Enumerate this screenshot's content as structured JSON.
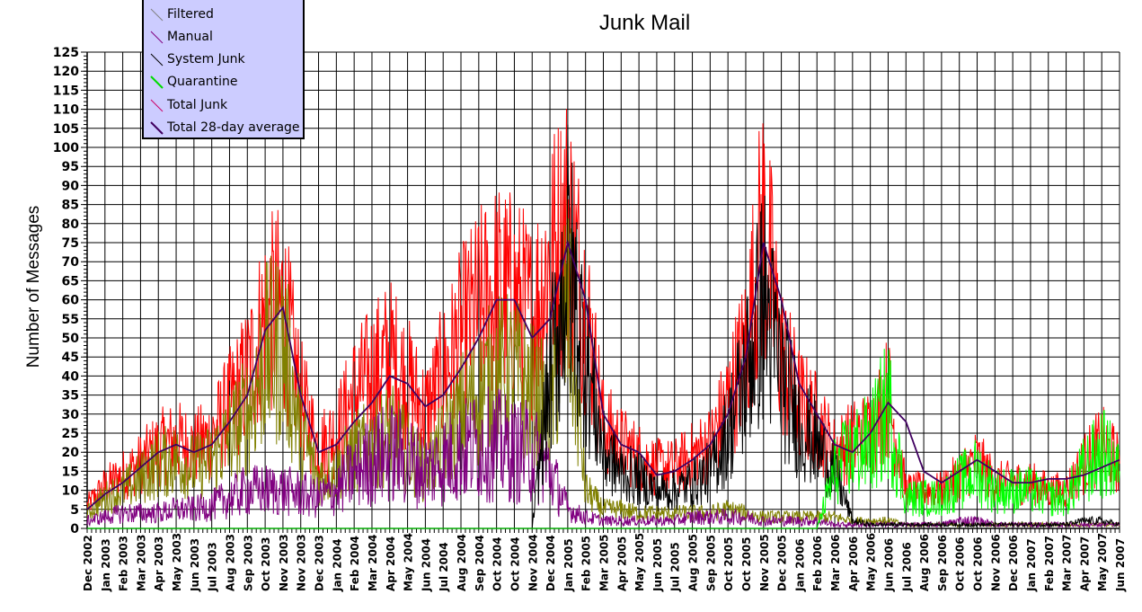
{
  "chart_data": {
    "type": "line",
    "title": "Junk Mail",
    "xlabel": "",
    "ylabel": "Number of Messages",
    "ylim": [
      0,
      125
    ],
    "ytick_step": 5,
    "grid": true,
    "legend_position": "top-left",
    "categories": [
      "Dec 2002",
      "Jan 2003",
      "Feb 2003",
      "Mar 2003",
      "Apr 2003",
      "May 2003",
      "Jun 2003",
      "Jul 2003",
      "Aug 2003",
      "Sep 2003",
      "Oct 2003",
      "Nov 2003",
      "Nov 2003",
      "Dec 2003",
      "Jan 2004",
      "Feb 2004",
      "Mar 2004",
      "Apr 2004",
      "May 2004",
      "Jun 2004",
      "Jul 2004",
      "Aug 2004",
      "Sep 2004",
      "Oct 2004",
      "Oct 2004",
      "Nov 2004",
      "Dec 2004",
      "Jan 2005",
      "Feb 2005",
      "Mar 2005",
      "Apr 2005",
      "May 2005",
      "Jun 2005",
      "Jul 2005",
      "Aug 2005",
      "Sep 2005",
      "Oct 2005",
      "Oct 2005",
      "Nov 2005",
      "Dec 2005",
      "Jan 2006",
      "Feb 2006",
      "Mar 2006",
      "Apr 2006",
      "May 2006",
      "Jun 2006",
      "Jul 2006",
      "Aug 2006",
      "Sep 2006",
      "Oct 2006",
      "Oct 2006",
      "Nov 2006",
      "Dec 2006",
      "Jan 2007",
      "Feb 2007",
      "Mar 2007",
      "Apr 2007",
      "May 2007",
      "Jun 2007"
    ],
    "series": [
      {
        "name": "Filtered",
        "color": "#808000",
        "noise": 0.4,
        "values": [
          4,
          8,
          10,
          13,
          17,
          18,
          16,
          18,
          24,
          30,
          45,
          48,
          25,
          13,
          15,
          20,
          22,
          25,
          20,
          15,
          22,
          30,
          35,
          40,
          40,
          35,
          30,
          60,
          10,
          5,
          5,
          4,
          4,
          4,
          4,
          4,
          5,
          4,
          3,
          3,
          3,
          3,
          3,
          2,
          2,
          2,
          1,
          1,
          1,
          1,
          1,
          1,
          1,
          1,
          1,
          1,
          1,
          1,
          1
        ]
      },
      {
        "name": "Manual",
        "color": "#800080",
        "noise": 0.5,
        "values": [
          2,
          3,
          4,
          4,
          4,
          5,
          5,
          6,
          8,
          10,
          10,
          10,
          9,
          8,
          10,
          15,
          18,
          20,
          18,
          15,
          18,
          20,
          22,
          22,
          20,
          20,
          15,
          5,
          3,
          2,
          2,
          2,
          2,
          2,
          3,
          3,
          3,
          3,
          2,
          2,
          2,
          2,
          1,
          1,
          1,
          1,
          1,
          1,
          1,
          2,
          2,
          1,
          1,
          1,
          1,
          1,
          1,
          1,
          1
        ]
      },
      {
        "name": "System Junk",
        "color": "#000000",
        "noise": 0.4,
        "values": [
          0,
          0,
          0,
          0,
          0,
          0,
          0,
          0,
          0,
          0,
          0,
          0,
          0,
          0,
          0,
          0,
          0,
          0,
          0,
          0,
          0,
          0,
          0,
          0,
          0,
          0,
          40,
          70,
          45,
          20,
          15,
          13,
          10,
          10,
          12,
          15,
          25,
          40,
          60,
          40,
          28,
          22,
          15,
          2,
          1,
          1,
          1,
          1,
          1,
          1,
          1,
          1,
          1,
          1,
          1,
          1,
          2,
          2,
          1
        ]
      },
      {
        "name": "Quarantine",
        "color": "#00ff00",
        "noise": 0.45,
        "values": [
          0,
          0,
          0,
          0,
          0,
          0,
          0,
          0,
          0,
          0,
          0,
          0,
          0,
          0,
          0,
          0,
          0,
          0,
          0,
          0,
          0,
          0,
          0,
          0,
          0,
          0,
          0,
          0,
          0,
          0,
          0,
          0,
          0,
          0,
          0,
          0,
          0,
          0,
          0,
          0,
          0,
          0,
          15,
          20,
          22,
          32,
          8,
          8,
          8,
          12,
          15,
          10,
          10,
          10,
          8,
          8,
          15,
          20,
          15
        ]
      },
      {
        "name": "Total Junk",
        "color": "#ff0000",
        "noise": 0.35,
        "values": [
          6,
          11,
          14,
          17,
          21,
          23,
          21,
          24,
          32,
          40,
          55,
          58,
          34,
          21,
          25,
          35,
          40,
          45,
          38,
          30,
          40,
          50,
          57,
          62,
          60,
          55,
          70,
          80,
          58,
          27,
          22,
          19,
          16,
          16,
          19,
          22,
          33,
          47,
          80,
          45,
          33,
          28,
          20,
          23,
          25,
          35,
          10,
          10,
          10,
          14,
          18,
          12,
          12,
          12,
          10,
          10,
          17,
          22,
          17
        ]
      },
      {
        "name": "Total 28-day average",
        "color": "#400060",
        "noise": 0,
        "values": [
          5,
          9,
          12,
          16,
          20,
          22,
          20,
          22,
          28,
          35,
          52,
          58,
          35,
          20,
          22,
          28,
          33,
          40,
          38,
          32,
          35,
          42,
          50,
          60,
          60,
          50,
          55,
          75,
          60,
          30,
          22,
          20,
          14,
          15,
          18,
          22,
          30,
          45,
          75,
          60,
          38,
          30,
          22,
          20,
          25,
          33,
          28,
          15,
          12,
          15,
          18,
          15,
          12,
          12,
          13,
          13,
          14,
          16,
          18
        ]
      }
    ]
  }
}
